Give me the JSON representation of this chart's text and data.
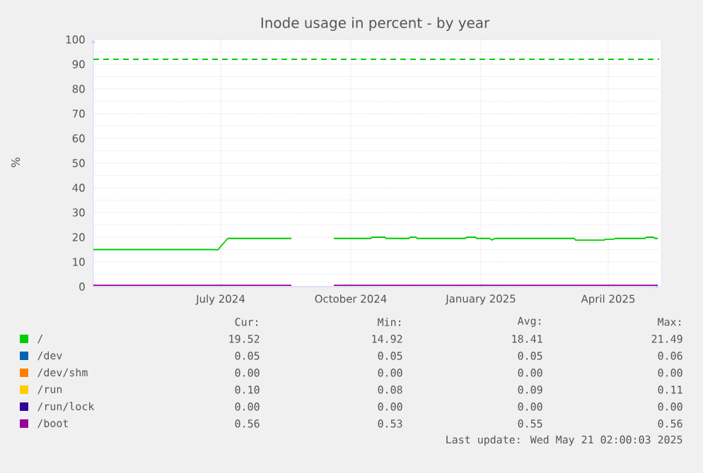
{
  "chart_data": {
    "type": "line",
    "title": "Inode usage in percent - by year",
    "ylabel": "%",
    "x": [
      "2024-04-02",
      "2024-06-26",
      "2024-06-29",
      "2024-07-06",
      "2024-08-20",
      "2024-09-04",
      "2024-09-19",
      "2024-10-15",
      "2024-10-16",
      "2024-10-25",
      "2024-10-26",
      "2024-11-11",
      "2024-11-12",
      "2024-11-16",
      "2024-11-17",
      "2024-12-21",
      "2024-12-22",
      "2024-12-28",
      "2024-12-29",
      "2025-01-07",
      "2025-01-09",
      "2025-01-11",
      "2025-03-08",
      "2025-03-09",
      "2025-03-29",
      "2025-03-30",
      "2025-04-05",
      "2025-04-06",
      "2025-04-27",
      "2025-04-28",
      "2025-05-03",
      "2025-05-04",
      "2025-05-06"
    ],
    "series": [
      {
        "name": "/",
        "color": "#00cc00",
        "values": [
          15.0,
          15.0,
          14.9,
          19.5,
          19.5,
          null,
          19.5,
          19.5,
          20.0,
          20.0,
          19.5,
          19.5,
          20.0,
          20.0,
          19.5,
          19.5,
          20.0,
          20.0,
          19.5,
          19.5,
          18.9,
          19.5,
          19.5,
          18.8,
          18.8,
          19.2,
          19.2,
          19.5,
          19.5,
          20.0,
          20.0,
          19.5,
          19.5
        ]
      },
      {
        "name": "/dev",
        "color": "#0066b3",
        "values": [
          null,
          null,
          null,
          null,
          null,
          null,
          null,
          null,
          null,
          null,
          null,
          null,
          null,
          null,
          null,
          null,
          null,
          null,
          null,
          null,
          null,
          null,
          null,
          null,
          null,
          null,
          null,
          null,
          null,
          null,
          null,
          null,
          null
        ]
      },
      {
        "name": "/dev/shm",
        "color": "#ff8000",
        "values": [
          null,
          null,
          null,
          null,
          null,
          null,
          null,
          null,
          null,
          null,
          null,
          null,
          null,
          null,
          null,
          null,
          null,
          null,
          null,
          null,
          null,
          null,
          null,
          null,
          null,
          null,
          null,
          null,
          null,
          null,
          null,
          null,
          null
        ]
      },
      {
        "name": "/run",
        "color": "#ffcc00",
        "values": [
          null,
          null,
          null,
          null,
          null,
          null,
          null,
          null,
          null,
          null,
          null,
          null,
          null,
          null,
          null,
          null,
          null,
          null,
          null,
          null,
          null,
          null,
          null,
          null,
          null,
          null,
          null,
          null,
          null,
          null,
          null,
          null,
          null
        ]
      },
      {
        "name": "/run/lock",
        "color": "#330099",
        "values": [
          null,
          null,
          null,
          null,
          null,
          null,
          null,
          null,
          null,
          null,
          null,
          null,
          null,
          null,
          null,
          null,
          null,
          null,
          null,
          null,
          null,
          null,
          null,
          null,
          null,
          null,
          null,
          null,
          null,
          null,
          null,
          null,
          null
        ]
      },
      {
        "name": "/boot",
        "color": "#990099",
        "values": [
          0.56,
          0.56,
          0.56,
          0.56,
          0.56,
          null,
          0.56,
          0.56,
          0.56,
          0.56,
          0.56,
          0.56,
          0.56,
          0.56,
          0.56,
          0.56,
          0.56,
          0.56,
          0.56,
          0.56,
          0.56,
          0.56,
          0.56,
          0.56,
          0.56,
          0.56,
          0.56,
          0.56,
          0.56,
          0.56,
          0.56,
          0.56,
          0.56
        ]
      }
    ],
    "xlim": [
      "2024-04-02",
      "2025-05-07"
    ],
    "xticks": [
      {
        "value": "2024-07-01",
        "label": "July 2024"
      },
      {
        "value": "2024-10-01",
        "label": "October 2024"
      },
      {
        "value": "2025-01-01",
        "label": "January 2025"
      },
      {
        "value": "2025-04-01",
        "label": "April 2025"
      }
    ],
    "ylim": [
      0,
      100
    ],
    "yticks": [
      0,
      10,
      20,
      30,
      40,
      50,
      60,
      70,
      80,
      90,
      100
    ],
    "ref_lines": [
      {
        "axis": "y",
        "value": 92,
        "color": "#00cc00",
        "line_style": "dashed"
      }
    ],
    "grid": true,
    "legend": "bottom",
    "annotations": [
      "Cur:",
      "Min:",
      "Avg:",
      "Max:",
      "19.52",
      "14.92",
      "18.41",
      "21.49",
      "0.05",
      "0.05",
      "0.05",
      "0.06",
      "0.00",
      "0.00",
      "0.00",
      "0.00",
      "0.10",
      "0.08",
      "0.09",
      "0.11",
      "0.00",
      "0.00",
      "0.00",
      "0.00",
      "0.56",
      "0.53",
      "0.55",
      "0.56",
      "Last update: Wed May 21 02:00:03 2025"
    ]
  }
}
